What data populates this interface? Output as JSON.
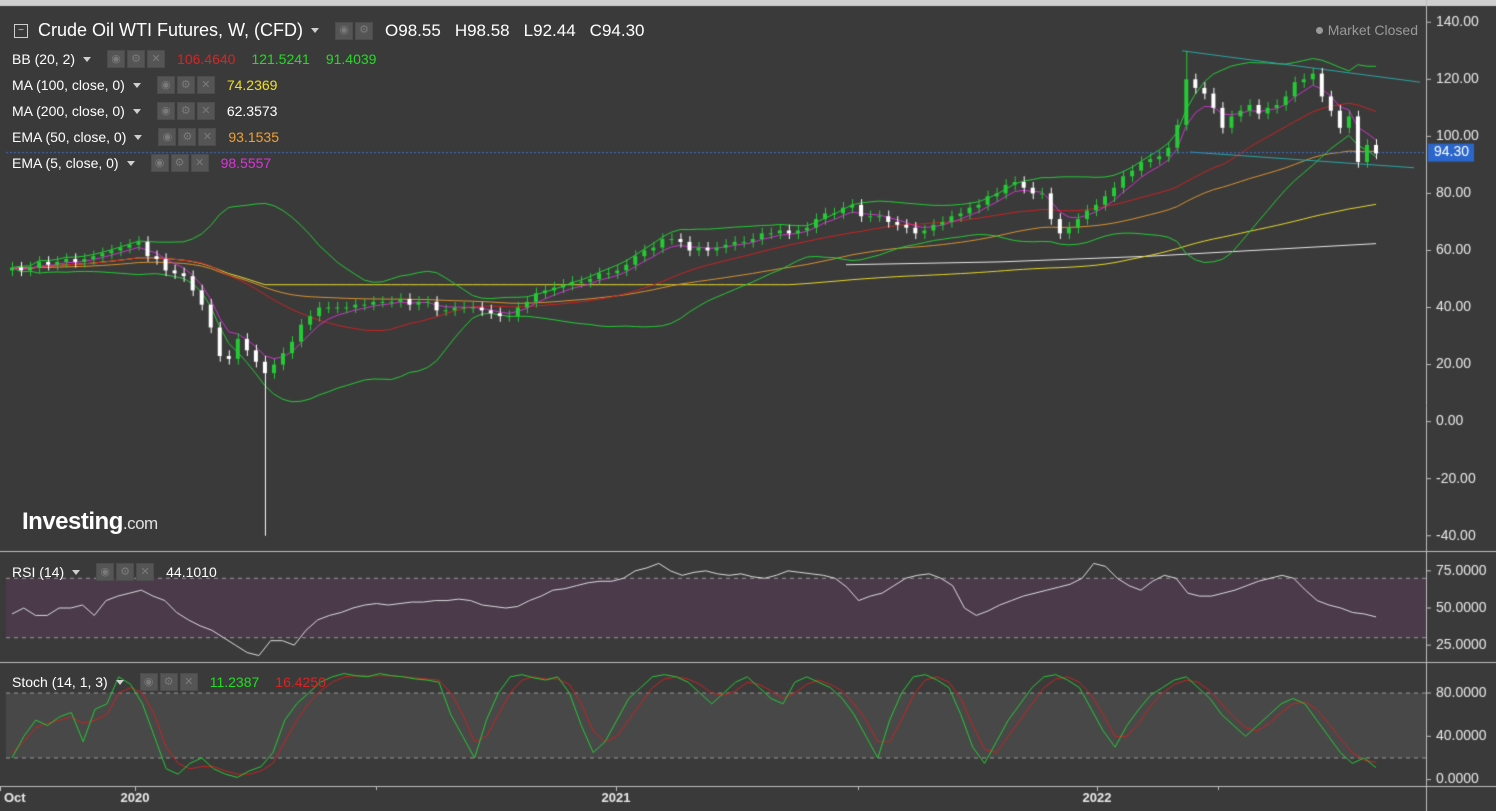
{
  "header": {
    "title": "Crude Oil WTI Futures, W, (CFD)",
    "open_label": "O",
    "open": "98.55",
    "high_label": "H",
    "high": "98.58",
    "low_label": "L",
    "low": "92.44",
    "close_label": "C",
    "close": "94.30",
    "market_status": "Market Closed"
  },
  "indicators": [
    {
      "label": "BB (20, 2)",
      "values": [
        {
          "v": "106.4640",
          "color": "#dd2222"
        },
        {
          "v": "121.5241",
          "color": "#22dd22"
        },
        {
          "v": "91.4039",
          "color": "#22dd22"
        }
      ]
    },
    {
      "label": "MA (100, close, 0)",
      "values": [
        {
          "v": "74.2369",
          "color": "#f0e020"
        }
      ]
    },
    {
      "label": "MA (200, close, 0)",
      "values": [
        {
          "v": "62.3573",
          "color": "#ffffff"
        }
      ]
    },
    {
      "label": "EMA (50, close, 0)",
      "values": [
        {
          "v": "93.1535",
          "color": "#f0a030"
        }
      ]
    },
    {
      "label": "EMA (5, close, 0)",
      "values": [
        {
          "v": "98.5557",
          "color": "#dd33dd"
        }
      ]
    }
  ],
  "rsi": {
    "label": "RSI (14)",
    "value": "44.1010"
  },
  "stoch": {
    "label": "Stoch (14, 1, 3)",
    "k": "11.2387",
    "d": "16.4250"
  },
  "logo": {
    "brand": "Investing",
    "suffix": ".com"
  },
  "colors": {
    "background": "#3a3a3a",
    "up": "#22cc33",
    "down": "#ffffff",
    "last_price_bg": "#2a66cc",
    "rsi_band": "#4a3a4a"
  },
  "chart_data": {
    "type": "candlestick",
    "title": "Crude Oil WTI Futures, W, (CFD)",
    "x_ticks": [
      "Oct",
      "2020",
      "2021",
      "2022"
    ],
    "price_axis": {
      "ticks": [
        "140.00",
        "120.00",
        "100.00",
        "80.00",
        "60.00",
        "40.00",
        "20.00",
        "0.00",
        "-20.00",
        "-40.00"
      ],
      "ylim": [
        -45,
        145
      ]
    },
    "last_price": "94.30",
    "closes": [
      54,
      53,
      54,
      56,
      55,
      56,
      57,
      56,
      57,
      58,
      59,
      60,
      61,
      62,
      63,
      58,
      57,
      53,
      52,
      51,
      46,
      41,
      33,
      23,
      22,
      29,
      25,
      21,
      17,
      20,
      24,
      28,
      34,
      37,
      40,
      40,
      40,
      40,
      41,
      41,
      42,
      42,
      42,
      43,
      41,
      42,
      42,
      39,
      39,
      40,
      40,
      40,
      39,
      38,
      37,
      37,
      40,
      42,
      45,
      46,
      47,
      48,
      49,
      49,
      50,
      52,
      52,
      53,
      55,
      58,
      60,
      61,
      64,
      64,
      63,
      60,
      61,
      60,
      61,
      62,
      63,
      63,
      64,
      66,
      66,
      67,
      66,
      67,
      68,
      71,
      73,
      73,
      75,
      76,
      72,
      72,
      72,
      70,
      69,
      68,
      66,
      67,
      69,
      70,
      72,
      73,
      75,
      76,
      79,
      80,
      83,
      84,
      82,
      80,
      80,
      71,
      66,
      68,
      71,
      74,
      76,
      79,
      82,
      86,
      88,
      91,
      92,
      93,
      96,
      104,
      120,
      117,
      115,
      110,
      103,
      107,
      109,
      111,
      108,
      110,
      111,
      114,
      119,
      120,
      122,
      114,
      109,
      103,
      107,
      91,
      97,
      94
    ],
    "indicator_lines": {
      "ema50_end": 93.15,
      "ma100_end": 74.24,
      "ma200_end": 62.36,
      "bb_upper_end": 121.52,
      "bb_mid_end": 106.46,
      "bb_lower_end": 91.4
    },
    "rsi_axis": {
      "ticks": [
        "75.0000",
        "50.0000",
        "25.0000"
      ],
      "ylim": [
        15,
        85
      ]
    },
    "rsi_values": [
      46,
      50,
      45,
      45,
      50,
      50,
      52,
      45,
      55,
      58,
      60,
      62,
      58,
      55,
      47,
      42,
      38,
      35,
      30,
      25,
      20,
      18,
      28,
      28,
      25,
      35,
      42,
      45,
      47,
      50,
      52,
      53,
      52,
      53,
      54,
      54,
      55,
      55,
      56,
      55,
      52,
      51,
      50,
      51,
      55,
      58,
      62,
      63,
      65,
      67,
      68,
      68,
      70,
      75,
      77,
      80,
      75,
      72,
      74,
      75,
      73,
      72,
      73,
      71,
      70,
      72,
      75,
      74,
      73,
      72,
      70,
      64,
      55,
      58,
      60,
      65,
      70,
      72,
      73,
      70,
      65,
      50,
      45,
      48,
      52,
      55,
      58,
      60,
      62,
      64,
      66,
      70,
      80,
      78,
      70,
      65,
      62,
      68,
      72,
      70,
      60,
      58,
      58,
      60,
      62,
      65,
      68,
      70,
      72,
      70,
      62,
      55,
      52,
      50,
      47,
      46,
      44
    ],
    "stoch_axis": {
      "ticks": [
        "80.0000",
        "40.0000",
        "0.0000"
      ],
      "ylim": [
        -5,
        105
      ]
    },
    "stoch_k": [
      20,
      40,
      55,
      50,
      58,
      62,
      35,
      65,
      70,
      95,
      88,
      70,
      40,
      10,
      5,
      15,
      20,
      10,
      5,
      2,
      8,
      12,
      25,
      55,
      70,
      80,
      90,
      95,
      98,
      96,
      95,
      98,
      96,
      95,
      93,
      92,
      90,
      60,
      40,
      20,
      55,
      80,
      95,
      97,
      94,
      92,
      95,
      80,
      50,
      25,
      35,
      55,
      75,
      85,
      95,
      97,
      95,
      90,
      80,
      70,
      80,
      90,
      95,
      85,
      75,
      70,
      90,
      95,
      90,
      85,
      75,
      60,
      40,
      20,
      55,
      80,
      95,
      97,
      92,
      85,
      60,
      30,
      15,
      35,
      55,
      70,
      85,
      95,
      97,
      92,
      85,
      65,
      45,
      30,
      50,
      65,
      78,
      85,
      92,
      95,
      85,
      75,
      60,
      50,
      40,
      50,
      60,
      70,
      75,
      70,
      55,
      40,
      25,
      15,
      20,
      11
    ],
    "stoch_d": [
      25,
      35,
      48,
      52,
      55,
      58,
      52,
      55,
      60,
      80,
      85,
      80,
      60,
      30,
      15,
      10,
      12,
      12,
      8,
      5,
      5,
      8,
      15,
      35,
      55,
      70,
      82,
      90,
      95,
      96,
      96,
      96,
      96,
      95,
      94,
      93,
      92,
      80,
      60,
      35,
      40,
      60,
      80,
      92,
      95,
      93,
      93,
      88,
      70,
      45,
      35,
      40,
      55,
      70,
      85,
      93,
      95,
      93,
      88,
      80,
      78,
      82,
      90,
      88,
      82,
      75,
      80,
      88,
      92,
      88,
      82,
      70,
      55,
      35,
      35,
      55,
      78,
      92,
      95,
      90,
      75,
      50,
      28,
      25,
      40,
      55,
      70,
      85,
      93,
      95,
      90,
      78,
      60,
      40,
      40,
      52,
      68,
      80,
      88,
      92,
      90,
      82,
      70,
      58,
      48,
      45,
      52,
      62,
      70,
      72,
      65,
      52,
      38,
      25,
      18,
      16
    ]
  }
}
